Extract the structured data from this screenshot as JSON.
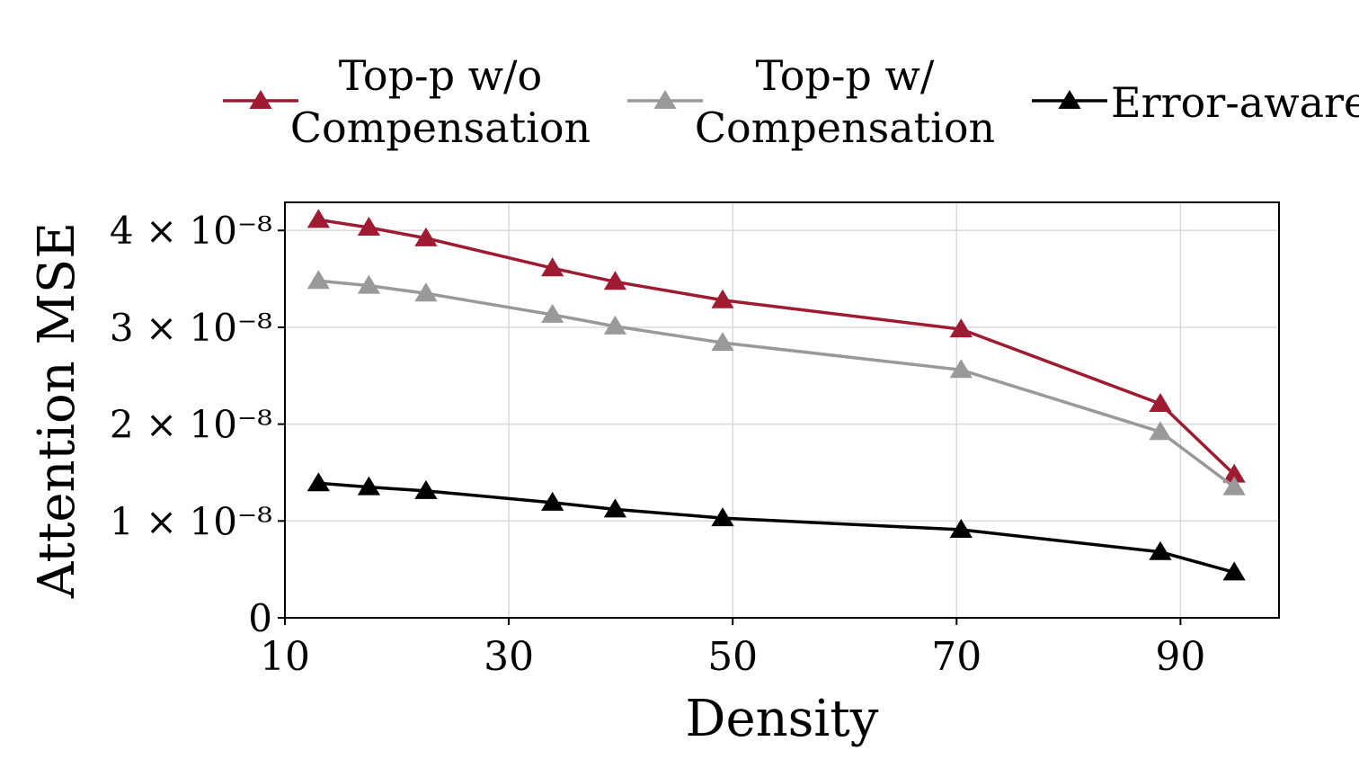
{
  "chart_data": {
    "type": "line",
    "title": "",
    "xlabel": "Density",
    "ylabel": "Attention MSE",
    "xlim": [
      10,
      98.8
    ],
    "ylim": [
      0,
      4.29e-08
    ],
    "grid": true,
    "legend_placement": "top (outside, above plot)",
    "x_ticks": [
      10,
      30,
      50,
      70,
      90
    ],
    "x_tick_labels": [
      "10",
      "30",
      "50",
      "70",
      "90"
    ],
    "y_ticks": [
      0,
      1e-08,
      2e-08,
      3e-08,
      4e-08
    ],
    "y_tick_labels": [
      "0",
      "1 × 10⁻⁸",
      "2 × 10⁻⁸",
      "3 × 10⁻⁸",
      "4 × 10⁻⁸"
    ],
    "x": [
      13.0,
      17.5,
      22.6,
      33.9,
      39.5,
      49.1,
      70.4,
      88.2,
      94.8
    ],
    "series": [
      {
        "name": "Top-p w/o Compensation",
        "name_lines": [
          "Top-p w/o",
          "Compensation"
        ],
        "color": "#9e1b32",
        "marker": "triangle",
        "values": [
          4.11e-08,
          4.03e-08,
          3.92e-08,
          3.61e-08,
          3.47e-08,
          3.28e-08,
          2.98e-08,
          2.21e-08,
          1.48e-08
        ]
      },
      {
        "name": "Top-p w/ Compensation",
        "name_lines": [
          "Top-p w/",
          "Compensation"
        ],
        "color": "#999999",
        "marker": "triangle",
        "values": [
          3.48e-08,
          3.43e-08,
          3.35e-08,
          3.13e-08,
          3.01e-08,
          2.84e-08,
          2.56e-08,
          1.92e-08,
          1.35e-08
        ]
      },
      {
        "name": "Error-aware",
        "name_lines": [
          "Error-aware"
        ],
        "color": "#000000",
        "marker": "triangle",
        "values": [
          1.39e-08,
          1.35e-08,
          1.31e-08,
          1.19e-08,
          1.12e-08,
          1.03e-08,
          9.1e-09,
          6.8e-09,
          4.7e-09
        ]
      }
    ]
  }
}
